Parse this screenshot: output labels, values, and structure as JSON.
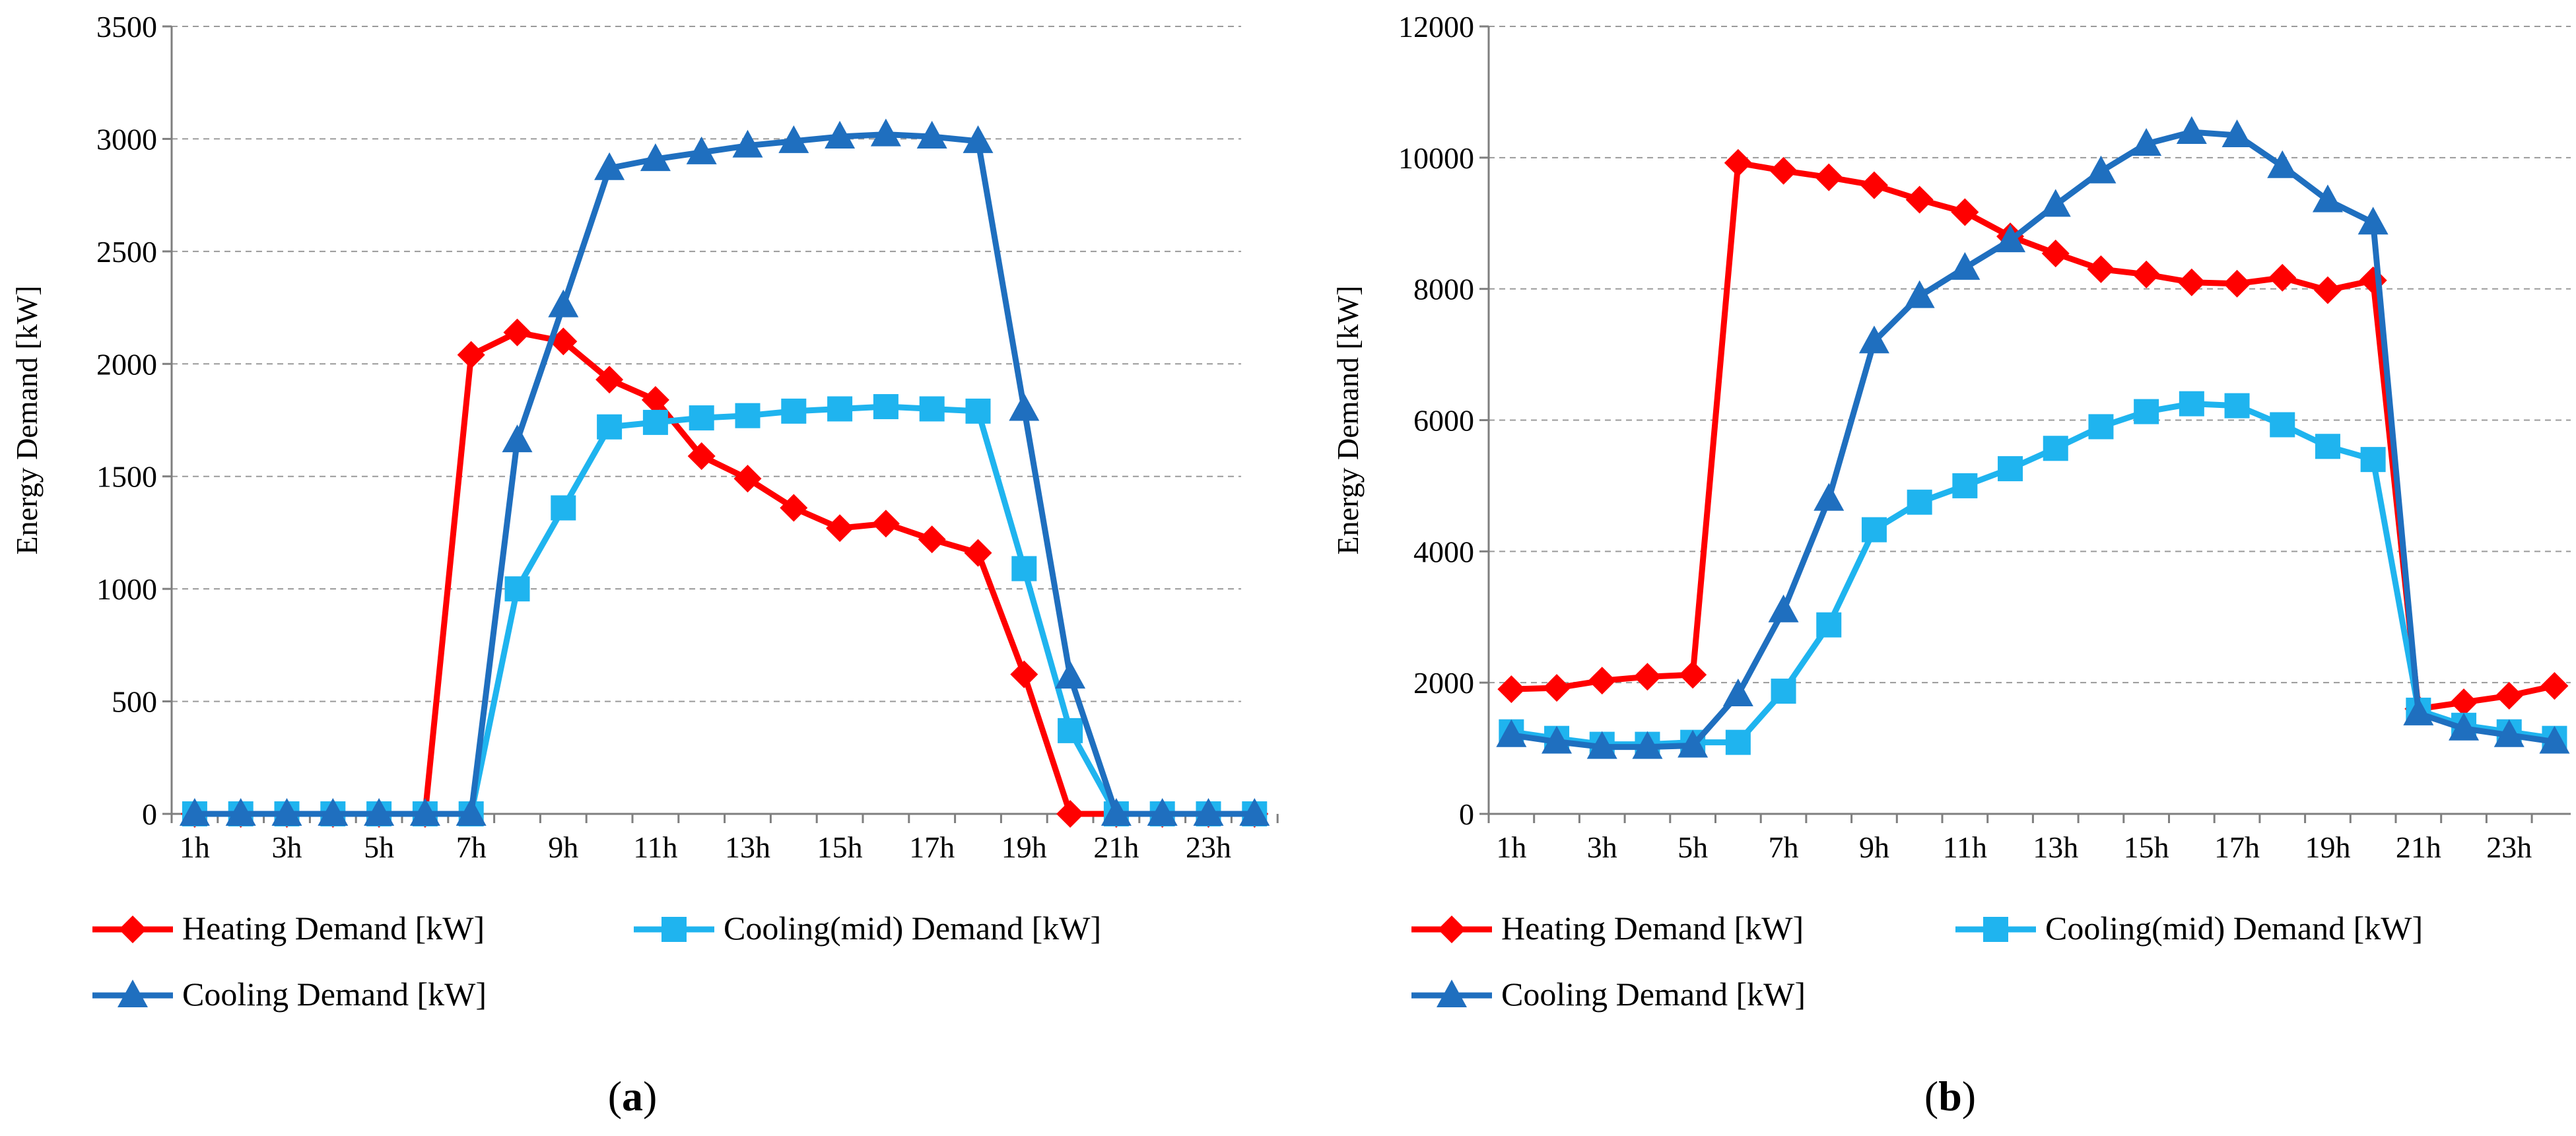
{
  "chart_data": [
    {
      "panel": "a",
      "panel_label": "a",
      "type": "line",
      "ylabel": "Energy Demand [kW]",
      "ylim": [
        0,
        3500
      ],
      "yticks": [
        0,
        500,
        1000,
        1500,
        2000,
        2500,
        3000,
        3500
      ],
      "grid": "horizontal dashed",
      "legend_position": "bottom",
      "x": [
        1,
        2,
        3,
        4,
        5,
        6,
        7,
        8,
        9,
        10,
        11,
        12,
        13,
        14,
        15,
        16,
        17,
        18,
        19,
        20,
        21,
        22,
        23,
        24
      ],
      "xtick_labels": [
        "1h",
        "3h",
        "5h",
        "7h",
        "9h",
        "11h",
        "13h",
        "15h",
        "17h",
        "19h",
        "21h",
        "23h"
      ],
      "series": [
        {
          "name": "Heating Demand [kW]",
          "color": "#ff0000",
          "marker": "diamond",
          "values": [
            0,
            0,
            0,
            0,
            0,
            0,
            2040,
            2140,
            2100,
            1930,
            1840,
            1590,
            1490,
            1360,
            1270,
            1290,
            1220,
            1160,
            620,
            0,
            0,
            0,
            0,
            0
          ]
        },
        {
          "name": "Cooling(mid) Demand [kW]",
          "color": "#1fb4ef",
          "marker": "square",
          "values": [
            0,
            0,
            0,
            0,
            0,
            0,
            0,
            1000,
            1360,
            1720,
            1740,
            1760,
            1770,
            1790,
            1800,
            1810,
            1800,
            1790,
            1090,
            370,
            0,
            0,
            0,
            0
          ]
        },
        {
          "name": "Cooling Demand [kW]",
          "color": "#1f6fbf",
          "marker": "triangle",
          "values": [
            0,
            0,
            0,
            0,
            0,
            0,
            0,
            1660,
            2260,
            2870,
            2910,
            2940,
            2970,
            2990,
            3010,
            3020,
            3010,
            2990,
            1800,
            610,
            0,
            0,
            0,
            0
          ]
        }
      ]
    },
    {
      "panel": "b",
      "panel_label": "b",
      "type": "line",
      "ylabel": "Energy Demand [kW]",
      "ylim": [
        0,
        12000
      ],
      "yticks": [
        0,
        2000,
        4000,
        6000,
        8000,
        10000,
        12000
      ],
      "grid": "horizontal dashed",
      "legend_position": "bottom",
      "x": [
        1,
        2,
        3,
        4,
        5,
        6,
        7,
        8,
        9,
        10,
        11,
        12,
        13,
        14,
        15,
        16,
        17,
        18,
        19,
        20,
        21,
        22,
        23,
        24
      ],
      "xtick_labels": [
        "1h",
        "3h",
        "5h",
        "7h",
        "9h",
        "11h",
        "13h",
        "15h",
        "17h",
        "19h",
        "21h",
        "23h"
      ],
      "series": [
        {
          "name": "Heating Demand [kW]",
          "color": "#ff0000",
          "marker": "diamond",
          "values": [
            1900,
            1920,
            2030,
            2090,
            2120,
            9920,
            9800,
            9700,
            9580,
            9360,
            9170,
            8800,
            8540,
            8300,
            8220,
            8100,
            8080,
            8170,
            7980,
            8130,
            1600,
            1700,
            1800,
            1950
          ]
        },
        {
          "name": "Cooling(mid) Demand [kW]",
          "color": "#1fb4ef",
          "marker": "square",
          "values": [
            1250,
            1150,
            1060,
            1060,
            1090,
            1090,
            1870,
            2880,
            4330,
            4750,
            5000,
            5260,
            5570,
            5900,
            6130,
            6250,
            6220,
            5930,
            5600,
            5400,
            1580,
            1350,
            1250,
            1150
          ]
        },
        {
          "name": "Cooling Demand [kW]",
          "color": "#1f6fbf",
          "marker": "triangle",
          "values": [
            1200,
            1100,
            1020,
            1020,
            1040,
            1820,
            3100,
            4800,
            7200,
            7890,
            8320,
            8740,
            9280,
            9790,
            10210,
            10390,
            10340,
            9870,
            9350,
            9010,
            1530,
            1300,
            1200,
            1100
          ]
        }
      ]
    }
  ]
}
